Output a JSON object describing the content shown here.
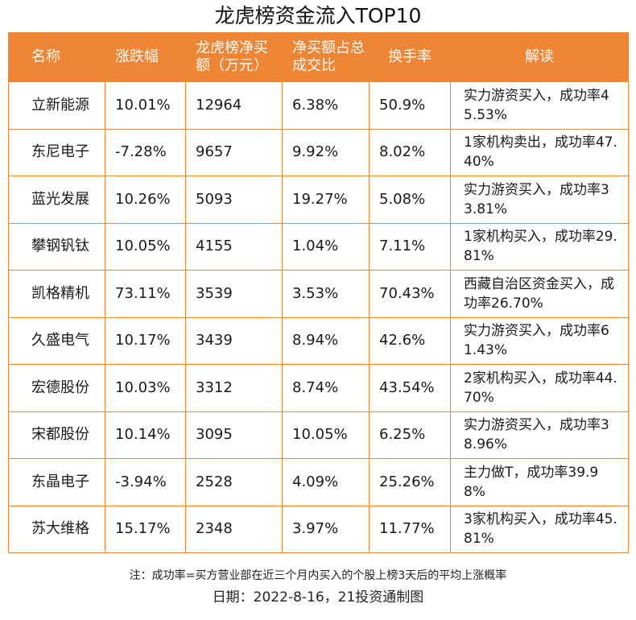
{
  "title": "龙虎榜资金流入TOP10",
  "headers": [
    "名称",
    "涨跌幅",
    "龙虎榜净买额（万元）",
    "净买额占总成交比",
    "换手率",
    "解读"
  ],
  "rows": [
    {
      "name": "立新能源",
      "change": "10.01%",
      "net_buy": "12964",
      "ratio": "6.38%",
      "turnover": "50.9%",
      "desc": "实力游资买入，成功率45.53%"
    },
    {
      "name": "东尼电子",
      "change": "-7.28%",
      "net_buy": "9657",
      "ratio": "9.92%",
      "turnover": "8.02%",
      "desc": "1家机构卖出，成功率47.40%"
    },
    {
      "name": "蓝光发展",
      "change": "10.26%",
      "net_buy": "5093",
      "ratio": "19.27%",
      "turnover": "5.08%",
      "desc": "实力游资买入，成功率33.81%"
    },
    {
      "name": "攀钢钒钛",
      "change": "10.05%",
      "net_buy": "4155",
      "ratio": "1.04%",
      "turnover": "7.11%",
      "desc": "1家机构买入，成功率29.81%"
    },
    {
      "name": "凯格精机",
      "change": "73.11%",
      "net_buy": "3539",
      "ratio": "3.53%",
      "turnover": "70.43%",
      "desc": "西藏自治区资金买入，成功率26.70%"
    },
    {
      "name": "久盛电气",
      "change": "10.17%",
      "net_buy": "3439",
      "ratio": "8.94%",
      "turnover": "42.6%",
      "desc": "实力游资买入，成功率61.43%"
    },
    {
      "name": "宏德股份",
      "change": "10.03%",
      "net_buy": "3312",
      "ratio": "8.74%",
      "turnover": "43.54%",
      "desc": "2家机构买入，成功率44.70%"
    },
    {
      "name": "宋都股份",
      "change": "10.14%",
      "net_buy": "3095",
      "ratio": "10.05%",
      "turnover": "6.25%",
      "desc": "实力游资买入，成功率38.96%"
    },
    {
      "name": "东晶电子",
      "change": "-3.94%",
      "net_buy": "2528",
      "ratio": "4.09%",
      "turnover": "25.26%",
      "desc": "主力做T，成功率39.98%"
    },
    {
      "name": "苏大维格",
      "change": "15.17%",
      "net_buy": "2348",
      "ratio": "3.97%",
      "turnover": "11.77%",
      "desc": "3家机构买入，成功率45.81%"
    }
  ],
  "note": "注：成功率=买方营业部在近三个月内买入的个股上榜3天后的平均上涨概率",
  "date": "日期：2022-8-16，21投资通制图"
}
